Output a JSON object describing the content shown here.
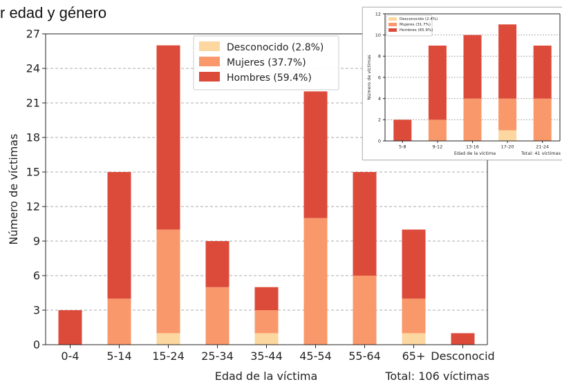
{
  "title_fragment": "r edad y género",
  "colors": {
    "unknown": "#fcd7a0",
    "women": "#f9986a",
    "men": "#dc4a3a"
  },
  "chart_data": [
    {
      "type": "bar",
      "stacked": true,
      "categories": [
        "0-4",
        "5-14",
        "15-24",
        "25-34",
        "35-44",
        "45-54",
        "55-64",
        "65+",
        "Desconocid"
      ],
      "series": [
        {
          "name": "Desconocido (2.8%)",
          "values": [
            0,
            0,
            1,
            0,
            1,
            0,
            0,
            1,
            0
          ]
        },
        {
          "name": "Mujeres (37.7%)",
          "values": [
            0,
            4,
            9,
            5,
            2,
            11,
            6,
            3,
            0
          ]
        },
        {
          "name": "Hombres (59.4%)",
          "values": [
            3,
            11,
            16,
            4,
            2,
            11,
            9,
            6,
            1
          ]
        }
      ],
      "xlabel": "Edad de la víctima",
      "ylabel": "Número de víctimas",
      "ylim": [
        0,
        27
      ],
      "yticks": [
        0,
        3,
        6,
        9,
        12,
        15,
        18,
        21,
        24,
        27
      ],
      "note": "Total: 106 víctimas",
      "grid": true,
      "legend_position": "top-center"
    },
    {
      "type": "bar",
      "stacked": true,
      "categories": [
        "5-8",
        "9-12",
        "13-16",
        "17-20",
        "21-24"
      ],
      "series": [
        {
          "name": "Desconocido (2.4%)",
          "values": [
            0,
            0,
            0,
            1,
            0
          ]
        },
        {
          "name": "Mujeres (31.7%)",
          "values": [
            0,
            2,
            4,
            3,
            4
          ]
        },
        {
          "name": "Hombres (65.9%)",
          "values": [
            2,
            7,
            6,
            7,
            5
          ]
        }
      ],
      "xlabel": "Edad de la víctima",
      "ylabel": "Número de víctimas",
      "ylim": [
        0,
        12
      ],
      "yticks": [
        0,
        2,
        4,
        6,
        8,
        10,
        12
      ],
      "note": "Total: 41 víctimas",
      "grid": true,
      "legend_position": "top-left"
    }
  ]
}
